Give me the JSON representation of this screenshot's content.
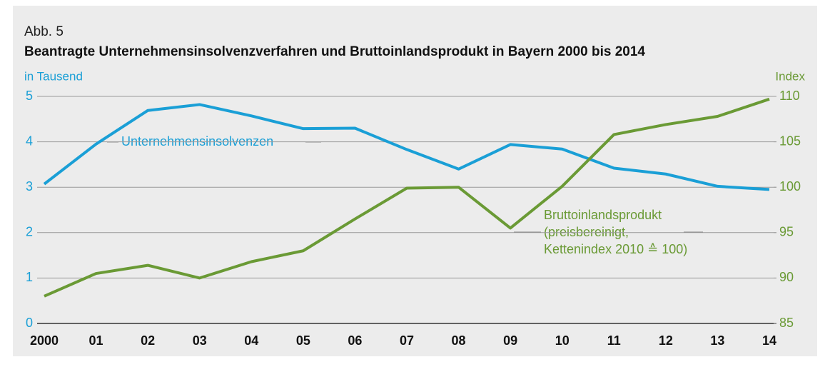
{
  "chart_data": {
    "type": "line",
    "label": "Abb. 5",
    "title": "Beantragte Unternehmensinsolvenzverfahren und Bruttoinlandsprodukt in Bayern 2000 bis 2014",
    "ylabel": "in Tausend",
    "y2label": "Index",
    "categories": [
      "2000",
      "01",
      "02",
      "03",
      "04",
      "05",
      "06",
      "07",
      "08",
      "09",
      "10",
      "11",
      "12",
      "13",
      "14"
    ],
    "series": [
      {
        "name": "Unternehmensinsolvenzen",
        "color": "#1a9fd6",
        "axis": "y",
        "values": [
          3.07,
          3.95,
          4.69,
          4.82,
          4.57,
          4.29,
          4.3,
          3.83,
          3.4,
          3.94,
          3.84,
          3.42,
          3.29,
          3.02,
          2.95
        ]
      },
      {
        "name": "Bruttoinlandsprodukt",
        "color": "#6a9a35",
        "axis": "y2",
        "values": [
          88.0,
          90.5,
          91.4,
          90.0,
          91.8,
          93.0,
          96.5,
          99.9,
          100.0,
          95.5,
          100.1,
          105.8,
          106.9,
          107.8,
          109.7
        ]
      }
    ],
    "annotations": [
      "(preisbereinigt,",
      "Kettenindex 2010 ≙ 100)"
    ],
    "ylim": [
      0,
      5
    ],
    "yticks": [
      0,
      1,
      2,
      3,
      4,
      5
    ],
    "y2lim": [
      85,
      110
    ],
    "y2ticks": [
      85,
      90,
      95,
      100,
      105,
      110
    ],
    "grid": true
  }
}
